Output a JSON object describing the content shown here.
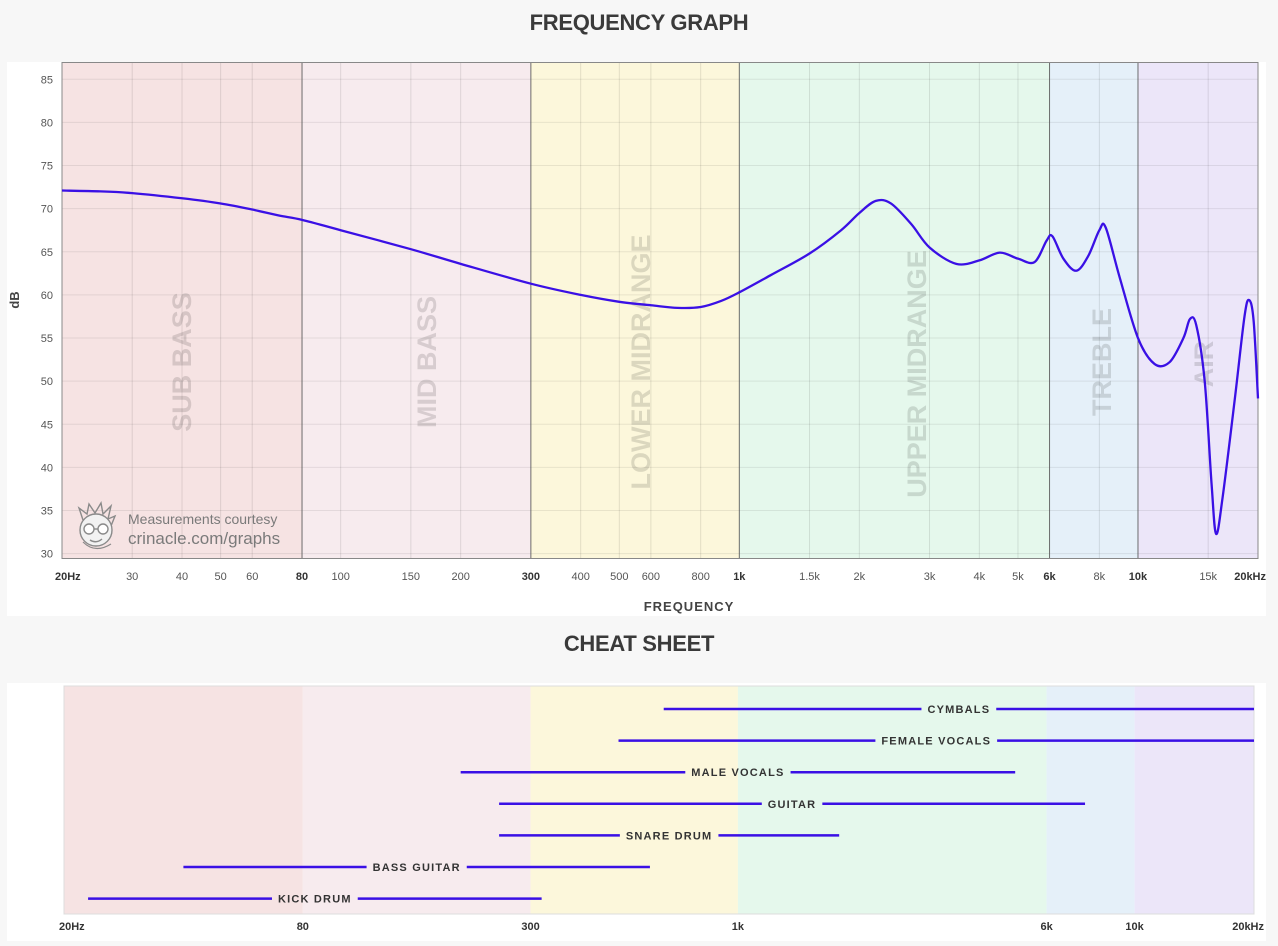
{
  "frequency_graph": {
    "title": "FREQUENCY GRAPH",
    "xlabel": "FREQUENCY",
    "ylabel": "dB",
    "credit_line1": "Measurements courtesy",
    "credit_line2": "crinacle.com/graphs"
  },
  "cheat_sheet": {
    "title": "CHEAT SHEET"
  },
  "colors": {
    "curve": "#3a10e5",
    "sub_bass": "#f6e3e3",
    "mid_bass": "#f7ebee",
    "lower_midrange": "#fcf7db",
    "upper_midrange": "#e5f8ec",
    "treble": "#e5f0f9",
    "air": "#ece6f9"
  },
  "chart_data": [
    {
      "type": "line",
      "title": "FREQUENCY GRAPH",
      "xlabel": "FREQUENCY",
      "ylabel": "dB",
      "x_scale": "log",
      "xlim": [
        20,
        20000
      ],
      "ylim": [
        29.5,
        87
      ],
      "grid": true,
      "y_ticks": [
        30,
        35,
        40,
        45,
        50,
        55,
        60,
        65,
        70,
        75,
        80,
        85
      ],
      "x_ticks": [
        {
          "value": 20,
          "label": "20Hz",
          "bold": true
        },
        {
          "value": 30,
          "label": "30",
          "bold": false
        },
        {
          "value": 40,
          "label": "40",
          "bold": false
        },
        {
          "value": 50,
          "label": "50",
          "bold": false
        },
        {
          "value": 60,
          "label": "60",
          "bold": false
        },
        {
          "value": 80,
          "label": "80",
          "bold": true
        },
        {
          "value": 100,
          "label": "100",
          "bold": false
        },
        {
          "value": 150,
          "label": "150",
          "bold": false
        },
        {
          "value": 200,
          "label": "200",
          "bold": false
        },
        {
          "value": 300,
          "label": "300",
          "bold": true
        },
        {
          "value": 400,
          "label": "400",
          "bold": false
        },
        {
          "value": 500,
          "label": "500",
          "bold": false
        },
        {
          "value": 600,
          "label": "600",
          "bold": false
        },
        {
          "value": 800,
          "label": "800",
          "bold": false
        },
        {
          "value": 1000,
          "label": "1k",
          "bold": true
        },
        {
          "value": 1500,
          "label": "1.5k",
          "bold": false
        },
        {
          "value": 2000,
          "label": "2k",
          "bold": false
        },
        {
          "value": 3000,
          "label": "3k",
          "bold": false
        },
        {
          "value": 4000,
          "label": "4k",
          "bold": false
        },
        {
          "value": 5000,
          "label": "5k",
          "bold": false
        },
        {
          "value": 6000,
          "label": "6k",
          "bold": true
        },
        {
          "value": 8000,
          "label": "8k",
          "bold": false
        },
        {
          "value": 10000,
          "label": "10k",
          "bold": true
        },
        {
          "value": 15000,
          "label": "15k",
          "bold": false
        },
        {
          "value": 20000,
          "label": "20kHz",
          "bold": true
        }
      ],
      "regions": [
        {
          "label": "SUB BASS",
          "from": 20,
          "to": 80,
          "color": "#f6e3e3"
        },
        {
          "label": "MID BASS",
          "from": 80,
          "to": 300,
          "color": "#f7ebee"
        },
        {
          "label": "LOWER MIDRANGE",
          "from": 300,
          "to": 1000,
          "color": "#fcf7db"
        },
        {
          "label": "UPPER MIDRANGE",
          "from": 1000,
          "to": 6000,
          "color": "#e5f8ec"
        },
        {
          "label": "TREBLE",
          "from": 6000,
          "to": 10000,
          "color": "#e5f0f9"
        },
        {
          "label": "AIR",
          "from": 10000,
          "to": 20000,
          "color": "#ece6f9"
        }
      ],
      "series": [
        {
          "color": "#3a10e5",
          "points": [
            [
              20,
              72.1
            ],
            [
              25,
              72.0
            ],
            [
              30,
              71.8
            ],
            [
              40,
              71.2
            ],
            [
              50,
              70.6
            ],
            [
              60,
              69.9
            ],
            [
              70,
              69.2
            ],
            [
              80,
              68.7
            ],
            [
              100,
              67.5
            ],
            [
              150,
              65.3
            ],
            [
              200,
              63.6
            ],
            [
              300,
              61.3
            ],
            [
              400,
              60.0
            ],
            [
              500,
              59.2
            ],
            [
              600,
              58.8
            ],
            [
              700,
              58.5
            ],
            [
              800,
              58.6
            ],
            [
              900,
              59.3
            ],
            [
              1000,
              60.3
            ],
            [
              1200,
              62.3
            ],
            [
              1500,
              64.8
            ],
            [
              1800,
              67.5
            ],
            [
              2000,
              69.5
            ],
            [
              2200,
              70.9
            ],
            [
              2400,
              70.6
            ],
            [
              2700,
              68.2
            ],
            [
              3000,
              65.5
            ],
            [
              3500,
              63.6
            ],
            [
              4000,
              64.0
            ],
            [
              4500,
              64.9
            ],
            [
              5000,
              64.2
            ],
            [
              5500,
              63.8
            ],
            [
              5900,
              66.3
            ],
            [
              6100,
              66.8
            ],
            [
              6500,
              64.2
            ],
            [
              7000,
              62.8
            ],
            [
              7500,
              64.5
            ],
            [
              8000,
              67.5
            ],
            [
              8300,
              67.8
            ],
            [
              9000,
              62.0
            ],
            [
              10000,
              55.0
            ],
            [
              11000,
              52.0
            ],
            [
              12000,
              52.2
            ],
            [
              13000,
              55.0
            ],
            [
              13500,
              57.2
            ],
            [
              14000,
              56.5
            ],
            [
              14700,
              50.0
            ],
            [
              15300,
              38.0
            ],
            [
              15700,
              32.3
            ],
            [
              16300,
              36.5
            ],
            [
              17500,
              48.0
            ],
            [
              18500,
              57.5
            ],
            [
              19000,
              59.4
            ],
            [
              19500,
              57.0
            ],
            [
              20000,
              48.0
            ]
          ]
        }
      ]
    },
    {
      "type": "range",
      "title": "CHEAT SHEET",
      "x_scale": "log",
      "xlim": [
        20,
        20000
      ],
      "x_ticks": [
        {
          "value": 20,
          "label": "20Hz"
        },
        {
          "value": 80,
          "label": "80"
        },
        {
          "value": 300,
          "label": "300"
        },
        {
          "value": 1000,
          "label": "1k"
        },
        {
          "value": 6000,
          "label": "6k"
        },
        {
          "value": 10000,
          "label": "10k"
        },
        {
          "value": 20000,
          "label": "20kHz"
        }
      ],
      "items": [
        {
          "label": "CYMBALS",
          "from": 650,
          "to": 20000
        },
        {
          "label": "FEMALE VOCALS",
          "from": 500,
          "to": 20000
        },
        {
          "label": "MALE VOCALS",
          "from": 200,
          "to": 5000
        },
        {
          "label": "GUITAR",
          "from": 250,
          "to": 7500
        },
        {
          "label": "SNARE DRUM",
          "from": 250,
          "to": 1800
        },
        {
          "label": "BASS GUITAR",
          "from": 40,
          "to": 600
        },
        {
          "label": "KICK DRUM",
          "from": 23,
          "to": 320
        }
      ]
    }
  ]
}
